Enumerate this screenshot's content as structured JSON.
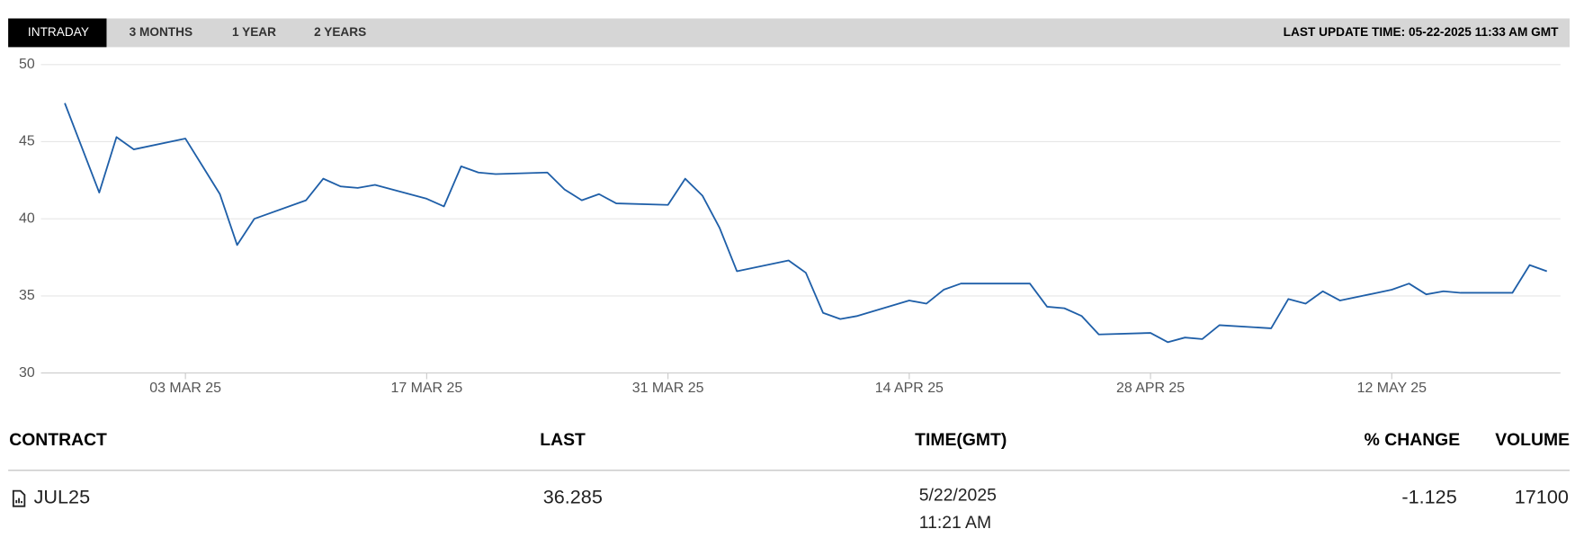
{
  "tabs": [
    "INTRADAY",
    "3 MONTHS",
    "1 YEAR",
    "2 YEARS"
  ],
  "last_update": "LAST UPDATE TIME: 05-22-2025 11:33 AM GMT",
  "chart_data": {
    "type": "line",
    "color": "#1f5fa8",
    "grid": true,
    "x": [
      "2025-02-24",
      "2025-02-26",
      "2025-02-27",
      "2025-02-28",
      "2025-03-03",
      "2025-03-04",
      "2025-03-05",
      "2025-03-06",
      "2025-03-07",
      "2025-03-10",
      "2025-03-11",
      "2025-03-12",
      "2025-03-13",
      "2025-03-14",
      "2025-03-17",
      "2025-03-18",
      "2025-03-19",
      "2025-03-20",
      "2025-03-21",
      "2025-03-24",
      "2025-03-25",
      "2025-03-26",
      "2025-03-27",
      "2025-03-28",
      "2025-03-31",
      "2025-04-01",
      "2025-04-02",
      "2025-04-03",
      "2025-04-04",
      "2025-04-07",
      "2025-04-08",
      "2025-04-09",
      "2025-04-10",
      "2025-04-11",
      "2025-04-14",
      "2025-04-15",
      "2025-04-16",
      "2025-04-17",
      "2025-04-21",
      "2025-04-22",
      "2025-04-23",
      "2025-04-24",
      "2025-04-25",
      "2025-04-28",
      "2025-04-29",
      "2025-04-30",
      "2025-05-01",
      "2025-05-02",
      "2025-05-05",
      "2025-05-06",
      "2025-05-07",
      "2025-05-08",
      "2025-05-09",
      "2025-05-12",
      "2025-05-13",
      "2025-05-14",
      "2025-05-15",
      "2025-05-16",
      "2025-05-19",
      "2025-05-20",
      "2025-05-21"
    ],
    "values": [
      47.5,
      41.7,
      45.3,
      44.5,
      45.2,
      43.4,
      41.6,
      38.3,
      40.0,
      41.2,
      42.6,
      42.1,
      42.0,
      42.2,
      41.3,
      40.8,
      43.4,
      43.0,
      42.9,
      43.0,
      41.9,
      41.2,
      41.6,
      41.0,
      40.9,
      42.6,
      41.5,
      39.4,
      36.6,
      37.3,
      36.5,
      33.9,
      33.5,
      33.7,
      34.7,
      34.5,
      35.4,
      35.8,
      35.8,
      34.3,
      34.2,
      33.7,
      32.5,
      32.6,
      32.0,
      32.3,
      32.2,
      33.1,
      32.9,
      34.8,
      34.5,
      35.3,
      34.7,
      35.4,
      35.8,
      35.1,
      35.3,
      35.2,
      35.2,
      37.0,
      36.6
    ],
    "xlim": [
      "2025-02-23",
      "2025-05-22"
    ],
    "xticks": [
      {
        "value": "2025-03-03",
        "label": "03 MAR 25"
      },
      {
        "value": "2025-03-17",
        "label": "17 MAR 25"
      },
      {
        "value": "2025-03-31",
        "label": "31 MAR 25"
      },
      {
        "value": "2025-04-14",
        "label": "14 APR 25"
      },
      {
        "value": "2025-04-28",
        "label": "28 APR 25"
      },
      {
        "value": "2025-05-12",
        "label": "12 MAY 25"
      }
    ],
    "ylim": [
      30,
      50
    ],
    "yticks": [
      30,
      35,
      40,
      45,
      50
    ]
  },
  "table": {
    "headers": [
      "CONTRACT",
      "LAST",
      "TIME(GMT)",
      "% CHANGE",
      "VOLUME"
    ],
    "rows": [
      {
        "contract": "JUL25",
        "last": "36.285",
        "time": [
          "5/22/2025",
          "11:21 AM"
        ],
        "change": "-1.125",
        "volume": "17100"
      }
    ]
  }
}
